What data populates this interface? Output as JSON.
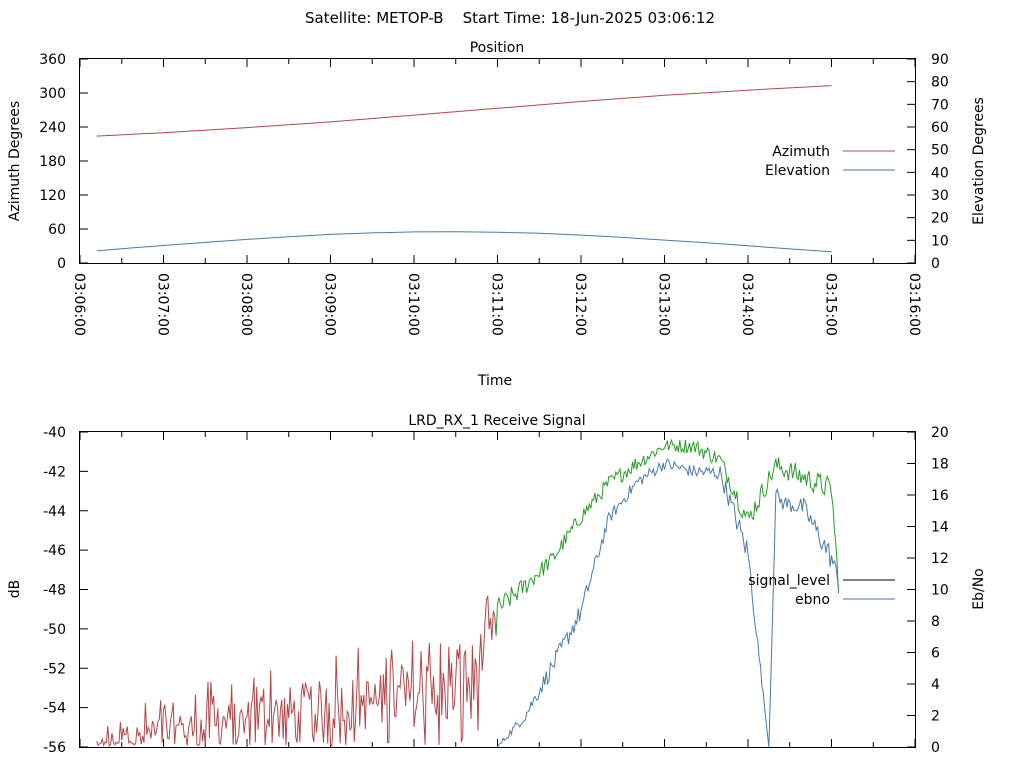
{
  "suptitle": "Satellite: METOP-B    Start Time: 18-Jun-2025 03:06:12",
  "chart_data": [
    {
      "type": "line",
      "title": "Position",
      "xlabel": "Time",
      "ylabel": "Azimuth Degrees",
      "y2label": "Elevation Degrees",
      "xlim": [
        "03:06:00",
        "03:16:00"
      ],
      "ylim": [
        0,
        360
      ],
      "y2lim": [
        0,
        90
      ],
      "xticks": [
        "03:06:00",
        "03:07:00",
        "03:08:00",
        "03:09:00",
        "03:10:00",
        "03:11:00",
        "03:12:00",
        "03:13:00",
        "03:14:00",
        "03:15:00",
        "03:16:00"
      ],
      "yticks": [
        0,
        60,
        120,
        180,
        240,
        300,
        360
      ],
      "y2ticks": [
        0,
        10,
        20,
        30,
        40,
        50,
        60,
        70,
        80,
        90
      ],
      "legend_position": "right",
      "series": [
        {
          "name": "Azimuth",
          "axis": "left",
          "color": "#b0484a",
          "x": [
            "03:06:12",
            "03:07:00",
            "03:08:00",
            "03:09:00",
            "03:10:00",
            "03:11:00",
            "03:12:00",
            "03:13:00",
            "03:14:00",
            "03:15:00"
          ],
          "values": [
            224,
            230,
            239,
            249,
            261,
            273,
            285,
            296,
            305,
            313
          ]
        },
        {
          "name": "Elevation",
          "axis": "right",
          "color": "#4a7aa6",
          "x": [
            "03:06:12",
            "03:06:30",
            "03:07:00",
            "03:07:30",
            "03:08:00",
            "03:08:30",
            "03:09:00",
            "03:09:30",
            "03:10:00",
            "03:10:30",
            "03:11:00",
            "03:11:30",
            "03:12:00",
            "03:12:30",
            "03:13:00",
            "03:13:30",
            "03:14:00",
            "03:14:30",
            "03:15:00"
          ],
          "values": [
            5.4,
            6.3,
            7.7,
            9.1,
            10.4,
            11.6,
            12.6,
            13.3,
            13.7,
            13.8,
            13.6,
            13.1,
            12.3,
            11.3,
            10.1,
            8.9,
            7.6,
            6.2,
            5.0
          ]
        }
      ]
    },
    {
      "type": "line",
      "title": "LRD_RX_1 Receive Signal",
      "xlabel": "",
      "ylabel": "dB",
      "y2label": "Eb/No",
      "ylim": [
        -56,
        -40
      ],
      "y2lim": [
        0,
        20
      ],
      "yticks": [
        -40,
        -42,
        -44,
        -46,
        -48,
        -50,
        -52,
        -54,
        -56
      ],
      "y2ticks": [
        0,
        2,
        4,
        6,
        8,
        10,
        12,
        14,
        16,
        18,
        20
      ],
      "legend_position": "right",
      "series": [
        {
          "name": "signal_level",
          "axis": "left",
          "legend_color": "#000000",
          "colors": {
            "low_snr": "#b0484a",
            "high_snr": "#2a9a2a"
          },
          "x": [
            "03:06:12",
            "03:06:40",
            "03:07:20",
            "03:08:00",
            "03:08:40",
            "03:09:20",
            "03:10:00",
            "03:10:20",
            "03:10:40",
            "03:11:00",
            "03:11:20",
            "03:11:40",
            "03:12:00",
            "03:12:20",
            "03:12:40",
            "03:13:00",
            "03:13:20",
            "03:13:40",
            "03:14:00",
            "03:14:20",
            "03:14:40",
            "03:15:00",
            "03:15:05"
          ],
          "values": [
            -55.8,
            -55.2,
            -54.8,
            -54.5,
            -53.8,
            -53.5,
            -53.2,
            -53.0,
            -52.5,
            -49.0,
            -47.8,
            -46.4,
            -44.3,
            -42.6,
            -41.6,
            -40.7,
            -40.7,
            -41.4,
            -44.5,
            -41.7,
            -42.3,
            -42.9,
            -47.8
          ],
          "noise_dB": [
            0.6,
            0.8,
            1.0,
            1.3,
            1.4,
            1.4,
            1.5,
            1.7,
            2.0,
            0.6,
            0.5,
            0.4,
            0.4,
            0.4,
            0.4,
            0.3,
            0.4,
            0.4,
            0.6,
            0.5,
            0.6,
            0.6,
            0.4
          ]
        },
        {
          "name": "ebno",
          "axis": "right",
          "color": "#4a7aa6",
          "x": [
            "03:11:00",
            "03:11:20",
            "03:11:40",
            "03:12:00",
            "03:12:20",
            "03:12:40",
            "03:13:00",
            "03:13:20",
            "03:13:40",
            "03:14:00",
            "03:14:15",
            "03:14:20",
            "03:14:25",
            "03:14:40",
            "03:15:00",
            "03:15:05"
          ],
          "values": [
            0.0,
            2.0,
            5.2,
            8.6,
            14.5,
            16.8,
            18.0,
            17.5,
            17.4,
            12.3,
            0.0,
            16.0,
            15.5,
            15.2,
            12.0,
            10.5
          ],
          "noise": [
            0.1,
            0.4,
            0.6,
            0.6,
            0.4,
            0.4,
            0.4,
            0.4,
            0.5,
            0.8,
            0.0,
            0.5,
            0.5,
            0.6,
            0.8,
            0.5
          ]
        }
      ]
    }
  ]
}
